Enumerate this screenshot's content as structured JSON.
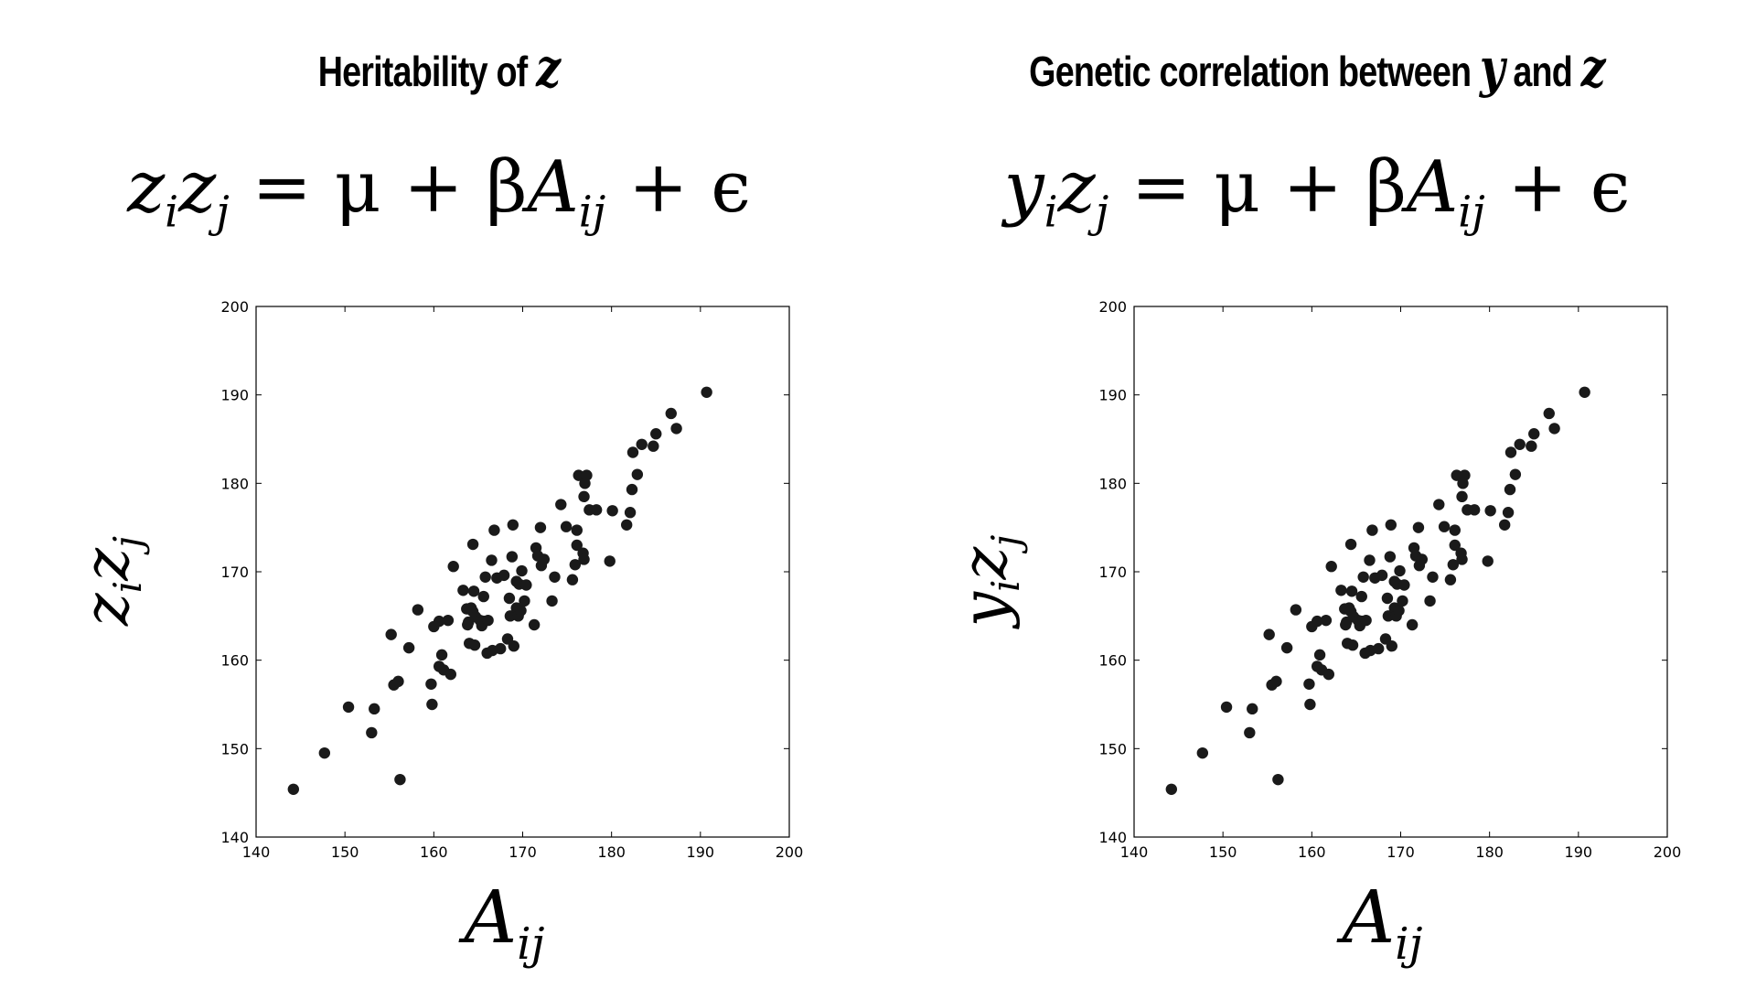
{
  "panels": [
    {
      "title_prefix": "Heritability of ",
      "title_var": "z",
      "title_var2_prefix": "",
      "title_var2": "",
      "eq_lhs_a": "z",
      "eq_lhs_a_sub": "i",
      "eq_lhs_b": "z",
      "eq_lhs_b_sub": "j",
      "eq_rhs": " = μ + β",
      "eq_A": "A",
      "eq_A_sub": "ij",
      "eq_tail": " + ϵ",
      "ylabel_a": "z",
      "ylabel_a_sub": "i",
      "ylabel_b": "z",
      "ylabel_b_sub": "j",
      "xlabel": "A",
      "xlabel_sub": "ij"
    },
    {
      "title_prefix": "Genetic correlation between ",
      "title_var": "y",
      "title_var2_prefix": " and ",
      "title_var2": "z",
      "eq_lhs_a": "y",
      "eq_lhs_a_sub": "i",
      "eq_lhs_b": "z",
      "eq_lhs_b_sub": "j",
      "eq_rhs": " = μ + β",
      "eq_A": "A",
      "eq_A_sub": "ij",
      "eq_tail": " + ϵ",
      "ylabel_a": "y",
      "ylabel_a_sub": "i",
      "ylabel_b": "z",
      "ylabel_b_sub": "j",
      "xlabel": "A",
      "xlabel_sub": "ij"
    }
  ],
  "chart_data": [
    {
      "type": "scatter",
      "title": "Heritability of z",
      "xlabel": "A_ij",
      "ylabel": "z_i z_j",
      "xlim": [
        140,
        200
      ],
      "ylim": [
        140,
        200
      ],
      "xticks": [
        140,
        150,
        160,
        170,
        180,
        190,
        200
      ],
      "yticks": [
        140,
        150,
        160,
        170,
        180,
        190,
        200
      ],
      "grid": false,
      "point_color": "#1a1a1a",
      "x": [
        144.2,
        147.7,
        150.4,
        153.0,
        153.3,
        155.2,
        155.5,
        156.0,
        156.2,
        157.2,
        158.2,
        159.7,
        159.8,
        160.0,
        160.6,
        160.6,
        160.9,
        161.1,
        161.6,
        161.9,
        162.2,
        163.3,
        163.7,
        163.8,
        163.9,
        164.0,
        164.2,
        164.4,
        164.4,
        164.5,
        164.6,
        164.7,
        165.2,
        165.4,
        165.6,
        165.6,
        165.8,
        166.0,
        166.1,
        166.5,
        166.6,
        166.8,
        167.1,
        167.5,
        167.9,
        168.3,
        168.5,
        168.6,
        168.8,
        168.9,
        169.0,
        169.3,
        169.3,
        169.5,
        169.6,
        169.8,
        169.9,
        170.2,
        170.4,
        171.3,
        171.5,
        171.7,
        172.0,
        172.1,
        172.4,
        173.3,
        173.6,
        174.3,
        174.9,
        175.6,
        175.9,
        176.1,
        176.1,
        176.3,
        176.8,
        176.9,
        176.9,
        177.0,
        177.2,
        177.5,
        178.3,
        179.8,
        180.1,
        181.7,
        182.1,
        182.3,
        182.4,
        182.9,
        183.4,
        184.7,
        185.0,
        186.7,
        187.3,
        190.7
      ],
      "y": [
        145.4,
        149.5,
        154.7,
        151.8,
        154.5,
        162.9,
        157.2,
        157.6,
        146.5,
        161.4,
        165.7,
        157.3,
        155.0,
        163.8,
        159.3,
        164.4,
        160.6,
        158.9,
        164.5,
        158.4,
        170.6,
        167.9,
        165.8,
        164.0,
        164.3,
        161.9,
        165.9,
        173.1,
        165.5,
        167.8,
        161.7,
        164.9,
        164.5,
        163.9,
        167.2,
        164.4,
        169.4,
        160.8,
        164.5,
        171.3,
        161.1,
        174.7,
        169.3,
        161.3,
        169.6,
        162.4,
        167.0,
        165.0,
        171.7,
        175.3,
        161.6,
        168.9,
        165.9,
        165.0,
        168.6,
        165.6,
        170.1,
        166.7,
        168.5,
        164.0,
        172.7,
        171.8,
        175.0,
        170.7,
        171.4,
        166.7,
        169.4,
        177.6,
        175.1,
        169.1,
        170.8,
        174.7,
        173.0,
        180.9,
        172.1,
        171.4,
        178.5,
        180.0,
        180.9,
        177.0,
        177.0,
        171.2,
        176.9,
        175.3,
        176.7,
        179.3,
        183.5,
        181.0,
        184.4,
        184.2,
        185.6,
        187.9,
        186.2,
        190.3
      ]
    },
    {
      "type": "scatter",
      "title": "Genetic correlation between y and z",
      "xlabel": "A_ij",
      "ylabel": "y_i z_j",
      "xlim": [
        140,
        200
      ],
      "ylim": [
        140,
        200
      ],
      "xticks": [
        140,
        150,
        160,
        170,
        180,
        190,
        200
      ],
      "yticks": [
        140,
        150,
        160,
        170,
        180,
        190,
        200
      ],
      "grid": false,
      "point_color": "#1a1a1a",
      "x": [
        144.2,
        147.7,
        150.4,
        153.0,
        153.3,
        155.2,
        155.5,
        156.0,
        156.2,
        157.2,
        158.2,
        159.7,
        159.8,
        160.0,
        160.6,
        160.6,
        160.9,
        161.1,
        161.6,
        161.9,
        162.2,
        163.3,
        163.7,
        163.8,
        163.9,
        164.0,
        164.2,
        164.4,
        164.4,
        164.5,
        164.6,
        164.7,
        165.2,
        165.4,
        165.6,
        165.6,
        165.8,
        166.0,
        166.1,
        166.5,
        166.6,
        166.8,
        167.1,
        167.5,
        167.9,
        168.3,
        168.5,
        168.6,
        168.8,
        168.9,
        169.0,
        169.3,
        169.3,
        169.5,
        169.6,
        169.8,
        169.9,
        170.2,
        170.4,
        171.3,
        171.5,
        171.7,
        172.0,
        172.1,
        172.4,
        173.3,
        173.6,
        174.3,
        174.9,
        175.6,
        175.9,
        176.1,
        176.1,
        176.3,
        176.8,
        176.9,
        176.9,
        177.0,
        177.2,
        177.5,
        178.3,
        179.8,
        180.1,
        181.7,
        182.1,
        182.3,
        182.4,
        182.9,
        183.4,
        184.7,
        185.0,
        186.7,
        187.3,
        190.7
      ],
      "y": [
        145.4,
        149.5,
        154.7,
        151.8,
        154.5,
        162.9,
        157.2,
        157.6,
        146.5,
        161.4,
        165.7,
        157.3,
        155.0,
        163.8,
        159.3,
        164.4,
        160.6,
        158.9,
        164.5,
        158.4,
        170.6,
        167.9,
        165.8,
        164.0,
        164.3,
        161.9,
        165.9,
        173.1,
        165.5,
        167.8,
        161.7,
        164.9,
        164.5,
        163.9,
        167.2,
        164.4,
        169.4,
        160.8,
        164.5,
        171.3,
        161.1,
        174.7,
        169.3,
        161.3,
        169.6,
        162.4,
        167.0,
        165.0,
        171.7,
        175.3,
        161.6,
        168.9,
        165.9,
        165.0,
        168.6,
        165.6,
        170.1,
        166.7,
        168.5,
        164.0,
        172.7,
        171.8,
        175.0,
        170.7,
        171.4,
        166.7,
        169.4,
        177.6,
        175.1,
        169.1,
        170.8,
        174.7,
        173.0,
        180.9,
        172.1,
        171.4,
        178.5,
        180.0,
        180.9,
        177.0,
        177.0,
        171.2,
        176.9,
        175.3,
        176.7,
        179.3,
        183.5,
        181.0,
        184.4,
        184.2,
        185.6,
        187.9,
        186.2,
        190.3
      ]
    }
  ]
}
